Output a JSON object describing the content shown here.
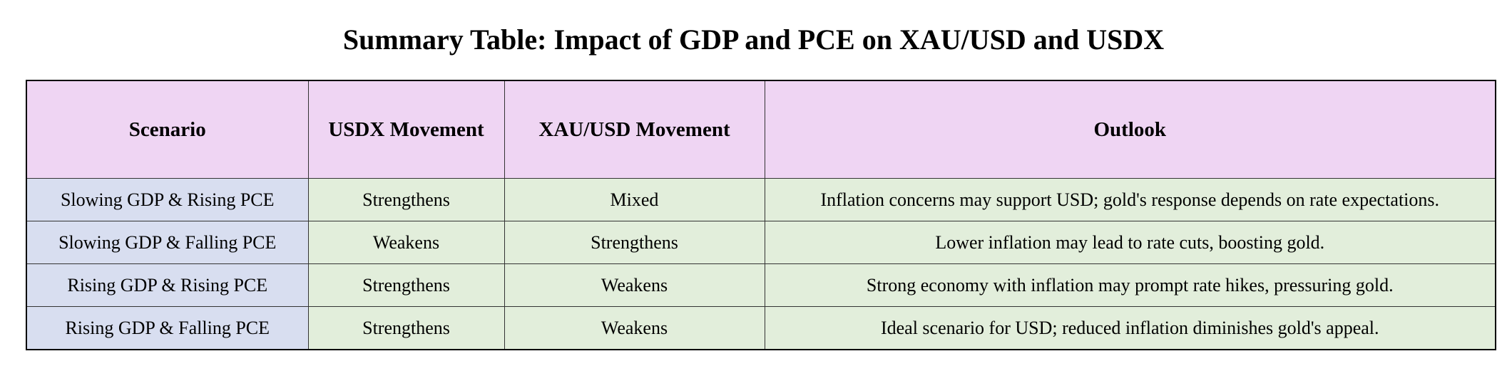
{
  "title": "Summary Table: Impact of GDP and PCE on XAU/USD and USDX",
  "table": {
    "headers": [
      "Scenario",
      "USDX Movement",
      "XAU/USD Movement",
      "Outlook"
    ],
    "rows": [
      [
        "Slowing GDP & Rising PCE",
        "Strengthens",
        "Mixed",
        "Inflation concerns may support USD; gold's response depends on rate expectations."
      ],
      [
        "Slowing GDP & Falling PCE",
        "Weakens",
        "Strengthens",
        "Lower inflation may lead to rate cuts, boosting gold."
      ],
      [
        "Rising GDP & Rising PCE",
        "Strengthens",
        "Weakens",
        "Strong economy with inflation may prompt rate hikes, pressuring gold."
      ],
      [
        "Rising GDP & Falling PCE",
        "Strengthens",
        "Weakens",
        "Ideal scenario for USD; reduced inflation diminishes gold's appeal."
      ]
    ]
  },
  "colors": {
    "header_bg": "#efd5f3",
    "scenario_bg": "#d8def0",
    "body_bg": "#e2eedb"
  }
}
